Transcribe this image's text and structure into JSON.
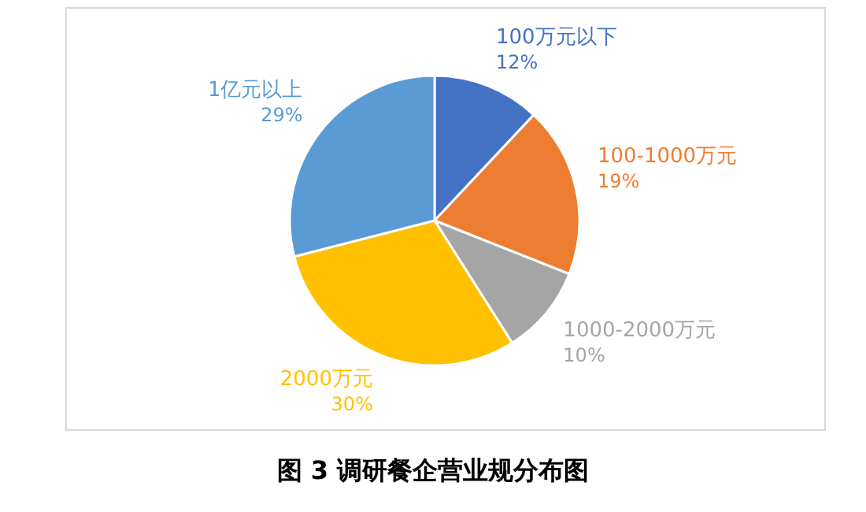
{
  "chart_data": {
    "type": "pie",
    "title": "图 3 调研餐企营业规分布图",
    "categories": [
      "100万元以下",
      "100-1000万元",
      "1000-2000万元",
      "2000万元",
      "1亿元以上"
    ],
    "values": [
      12,
      19,
      10,
      30,
      29
    ],
    "colors": [
      "#4472c4",
      "#ed7d31",
      "#a5a5a5",
      "#ffc000",
      "#5b9bd5"
    ],
    "value_labels": [
      "12%",
      "19%",
      "10%",
      "30%",
      "29%"
    ]
  }
}
